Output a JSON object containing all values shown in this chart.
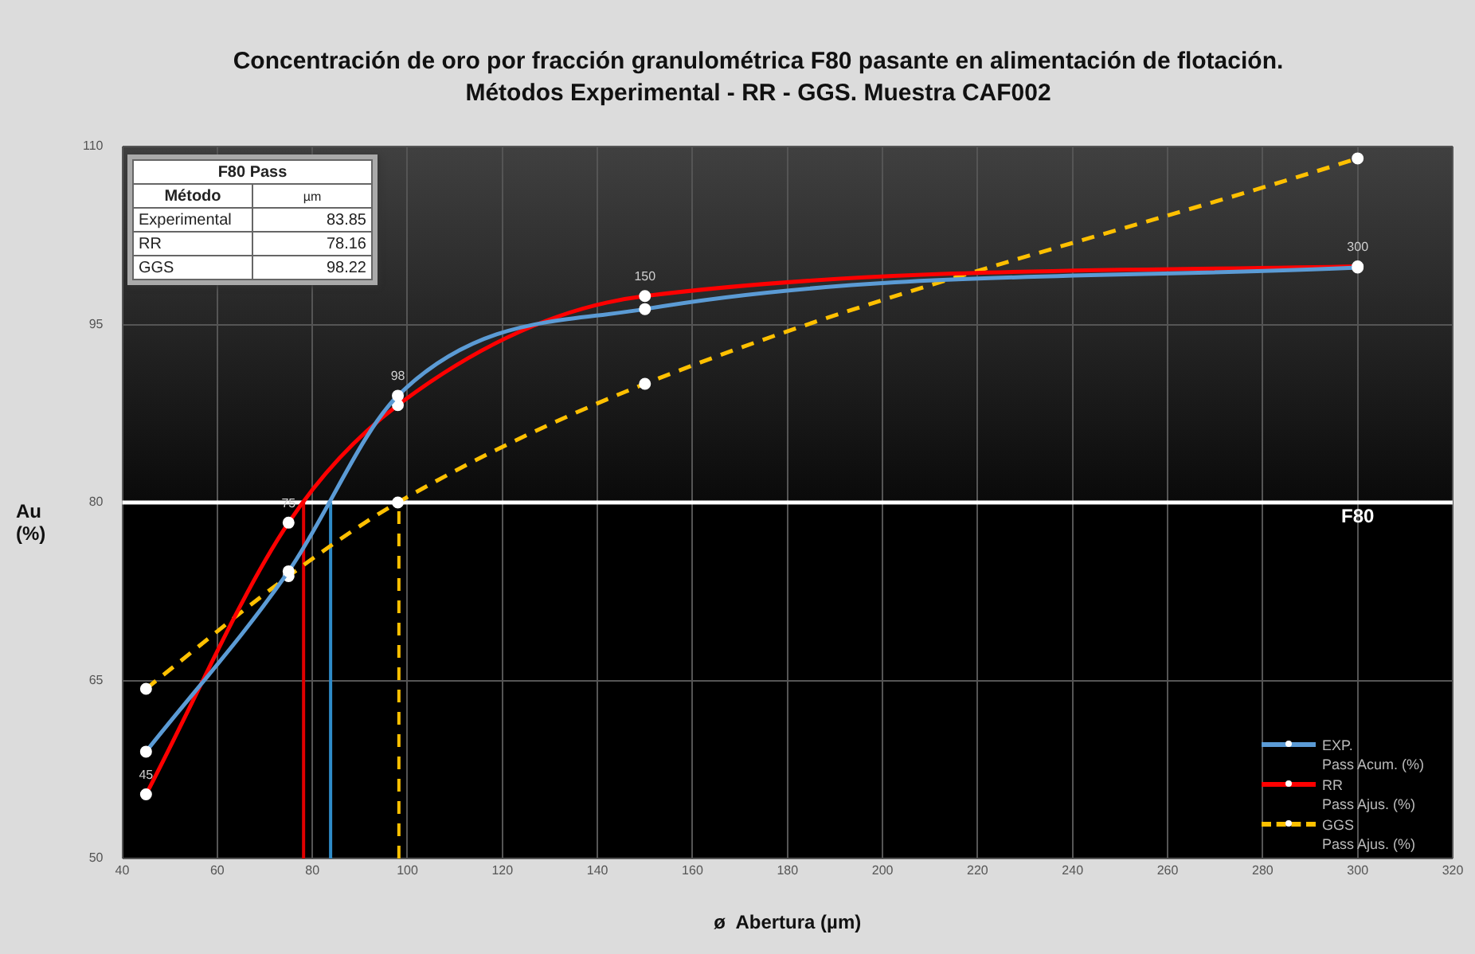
{
  "chart_data": {
    "type": "line",
    "title": "Concentración de oro por fracción granulométrica F80 pasante en alimentación de flotación.",
    "subtitle": "Métodos Experimental - RR - GGS. Muestra CAF002",
    "xlabel": "ø  Abertura (µm)",
    "ylabel": "Au\n(%)",
    "x": [
      45,
      75,
      98,
      150,
      300
    ],
    "series": [
      {
        "name": "EXP.\nPass Acum. (%)",
        "color": "#5b9bd5",
        "values": [
          59,
          74.2,
          89,
          96.3,
          99.8
        ]
      },
      {
        "name": "RR\nPass Ajus. (%)",
        "color": "#ff0000",
        "values": [
          55.4,
          78.3,
          88.2,
          97.4,
          99.9
        ]
      },
      {
        "name": "GGS\nPass Ajus. (%)",
        "color": "#ffc000",
        "values": [
          64.3,
          73.8,
          80,
          90,
          109
        ],
        "line_style": "dashed"
      }
    ],
    "xlim": [
      40,
      320
    ],
    "xticks": [
      40,
      60,
      80,
      100,
      120,
      140,
      160,
      180,
      200,
      220,
      240,
      260,
      280,
      300,
      320
    ],
    "ylim": [
      50,
      110
    ],
    "yticks": [
      50,
      65,
      80,
      95,
      110
    ],
    "grid": true,
    "legend": "bottom right",
    "marker": "circle",
    "ref_lines": [
      {
        "axis": "y",
        "value": 80,
        "label": "F80",
        "color": "#ffffff"
      },
      {
        "axis": "x",
        "value": 83.85,
        "color": "#2e8bc8"
      },
      {
        "axis": "x",
        "value": 78.16,
        "color": "#e00000"
      },
      {
        "axis": "x",
        "value": 98.22,
        "color": "#ffc000",
        "line_style": "dashed"
      }
    ],
    "annotations": [
      "F80 Pass",
      "Método",
      "µm",
      "Experimental",
      "83.85",
      "RR",
      "78.16",
      "GGS",
      "98.22",
      {
        "text": "45",
        "x": 45,
        "y": 55.4
      },
      {
        "text": "75",
        "x": 75,
        "y": 78.3
      },
      {
        "text": "98",
        "x": 98,
        "y": 89
      },
      {
        "text": "150",
        "x": 150,
        "y": 97.4
      },
      {
        "text": "300",
        "x": 300,
        "y": 99.9
      }
    ]
  }
}
